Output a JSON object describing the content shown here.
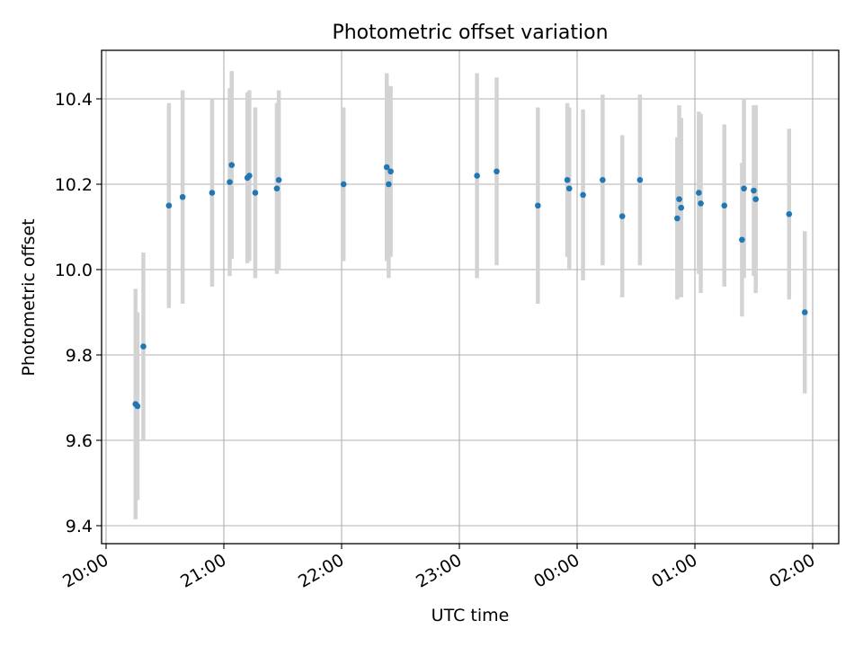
{
  "chart_data": {
    "type": "scatter",
    "title": "Photometric offset variation",
    "xlabel": "UTC time",
    "ylabel": "Photometric offset",
    "x_ticks": [
      "20:00",
      "21:00",
      "22:00",
      "23:00",
      "00:00",
      "01:00",
      "02:00"
    ],
    "y_ticks": [
      "9.4",
      "9.6",
      "9.8",
      "10.0",
      "10.2",
      "10.4"
    ],
    "grid": true,
    "colors": {
      "point": "#1f77b4",
      "errorbar": "#d3d3d3",
      "grid": "#b0b0b0"
    },
    "series": [
      {
        "points": [
          {
            "t": "20:15",
            "y": 9.685,
            "err": 0.27
          },
          {
            "t": "20:16",
            "y": 9.68,
            "err": 0.22
          },
          {
            "t": "20:19",
            "y": 9.82,
            "err": 0.22
          },
          {
            "t": "20:32",
            "y": 10.15,
            "err": 0.24
          },
          {
            "t": "20:39",
            "y": 10.17,
            "err": 0.25
          },
          {
            "t": "20:54",
            "y": 10.18,
            "err": 0.22
          },
          {
            "t": "21:03",
            "y": 10.205,
            "err": 0.22
          },
          {
            "t": "21:04",
            "y": 10.245,
            "err": 0.22
          },
          {
            "t": "21:12",
            "y": 10.215,
            "err": 0.2
          },
          {
            "t": "21:13",
            "y": 10.22,
            "err": 0.2
          },
          {
            "t": "21:16",
            "y": 10.18,
            "err": 0.2
          },
          {
            "t": "21:27",
            "y": 10.19,
            "err": 0.2
          },
          {
            "t": "21:28",
            "y": 10.21,
            "err": 0.21
          },
          {
            "t": "22:01",
            "y": 10.2,
            "err": 0.18
          },
          {
            "t": "22:23",
            "y": 10.24,
            "err": 0.22
          },
          {
            "t": "22:24",
            "y": 10.2,
            "err": 0.22
          },
          {
            "t": "22:25",
            "y": 10.23,
            "err": 0.2
          },
          {
            "t": "23:09",
            "y": 10.22,
            "err": 0.24
          },
          {
            "t": "23:19",
            "y": 10.23,
            "err": 0.22
          },
          {
            "t": "23:40",
            "y": 10.15,
            "err": 0.23
          },
          {
            "t": "23:55",
            "y": 10.21,
            "err": 0.18
          },
          {
            "t": "23:56",
            "y": 10.19,
            "err": 0.19
          },
          {
            "t": "00:03",
            "y": 10.175,
            "err": 0.2
          },
          {
            "t": "00:13",
            "y": 10.21,
            "err": 0.2
          },
          {
            "t": "00:23",
            "y": 10.125,
            "err": 0.19
          },
          {
            "t": "00:32",
            "y": 10.21,
            "err": 0.2
          },
          {
            "t": "00:51",
            "y": 10.12,
            "err": 0.19
          },
          {
            "t": "00:52",
            "y": 10.165,
            "err": 0.22
          },
          {
            "t": "00:53",
            "y": 10.145,
            "err": 0.21
          },
          {
            "t": "01:02",
            "y": 10.18,
            "err": 0.19
          },
          {
            "t": "01:03",
            "y": 10.155,
            "err": 0.21
          },
          {
            "t": "01:15",
            "y": 10.15,
            "err": 0.19
          },
          {
            "t": "01:24",
            "y": 10.07,
            "err": 0.18
          },
          {
            "t": "01:25",
            "y": 10.19,
            "err": 0.21
          },
          {
            "t": "01:30",
            "y": 10.185,
            "err": 0.2
          },
          {
            "t": "01:31",
            "y": 10.165,
            "err": 0.22
          },
          {
            "t": "01:48",
            "y": 10.13,
            "err": 0.2
          },
          {
            "t": "01:56",
            "y": 9.9,
            "err": 0.19
          }
        ]
      }
    ]
  }
}
